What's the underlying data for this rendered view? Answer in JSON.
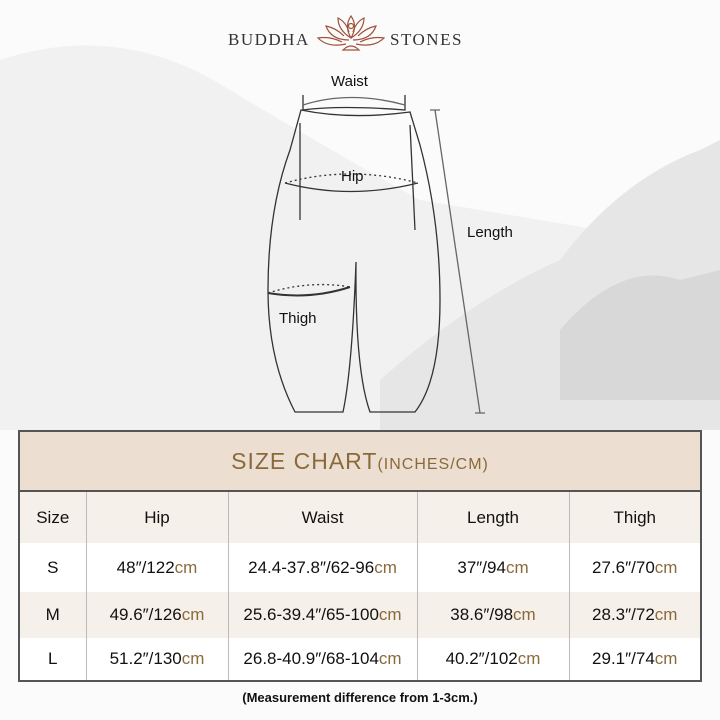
{
  "brand": {
    "left": "BUDDHA",
    "right": "STONES",
    "logo_icon": "lotus-meditation-icon",
    "color": "#a0523a"
  },
  "diagram": {
    "waist": "Waist",
    "hip": "Hip",
    "length": "Length",
    "thigh": "Thigh"
  },
  "chart": {
    "title": "SIZE CHART",
    "units": "(INCHES/CM)",
    "headers": [
      "Size",
      "Hip",
      "Waist",
      "Length",
      "Thigh"
    ],
    "rows": [
      {
        "size": "S",
        "hip": [
          "48″/122",
          "cm"
        ],
        "waist": [
          "24.4-37.8″/62-96",
          "cm"
        ],
        "length": [
          "37″/94",
          "cm"
        ],
        "thigh": [
          "27.6″/70",
          "cm"
        ]
      },
      {
        "size": "M",
        "hip": [
          "49.6″/126",
          "cm"
        ],
        "waist": [
          "25.6-39.4″/65-100",
          "cm"
        ],
        "length": [
          "38.6″/98",
          "cm"
        ],
        "thigh": [
          "28.3″/72",
          "cm"
        ]
      },
      {
        "size": "L",
        "hip": [
          "51.2″/130",
          "cm"
        ],
        "waist": [
          "26.8-40.9″/68-104",
          "cm"
        ],
        "length": [
          "40.2″/102",
          "cm"
        ],
        "thigh": [
          "29.1″/74",
          "cm"
        ]
      }
    ],
    "accent": "#8a6a3a",
    "header_bg": "#ecdfd2"
  },
  "note": "(Measurement difference from 1-3cm.)"
}
